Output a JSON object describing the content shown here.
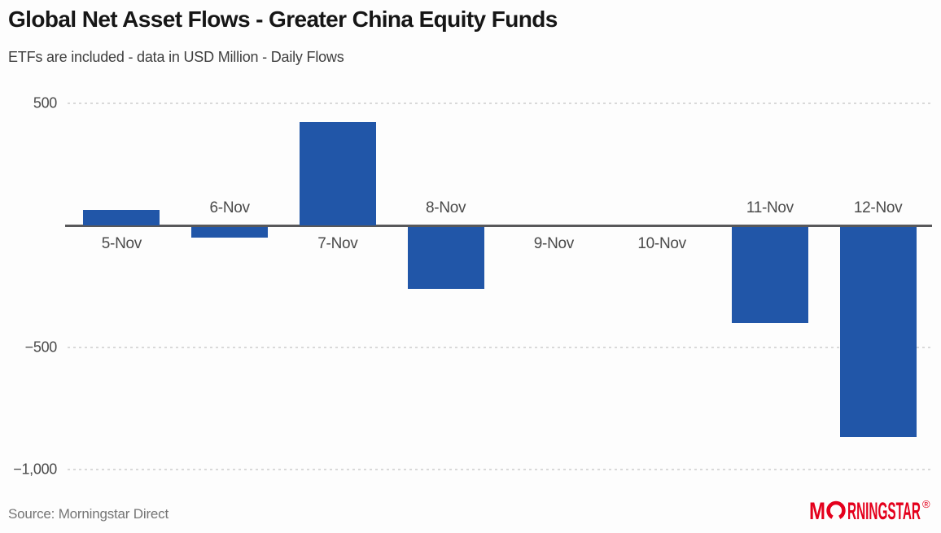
{
  "header": {
    "title": "Global Net Asset Flows - Greater China Equity Funds",
    "subtitle": "ETFs are included - data in USD Million - Daily Flows"
  },
  "chart_data": {
    "type": "bar",
    "categories": [
      "5-Nov",
      "6-Nov",
      "7-Nov",
      "8-Nov",
      "9-Nov",
      "10-Nov",
      "11-Nov",
      "12-Nov"
    ],
    "values": [
      65,
      -45,
      425,
      -255,
      0,
      0,
      -395,
      -860
    ],
    "title": "Global Net Asset Flows - Greater China Equity Funds",
    "subtitle": "ETFs are included - data in USD Million - Daily Flows",
    "xlabel": "",
    "ylabel": "",
    "ylim": [
      -1000,
      500
    ],
    "yticks": [
      {
        "value": 500,
        "label": "500"
      },
      {
        "value": 0,
        "label": ""
      },
      {
        "value": -500,
        "label": "−500"
      },
      {
        "value": -1000,
        "label": "−1,000"
      }
    ],
    "grid": "horizontal-dotted",
    "legend": null,
    "bar_color": "#2156a8",
    "axis_color": "#58585a",
    "grid_color": "#d9d9d9",
    "label_color": "#4a4a4a",
    "label_side_note": "category labels sit below axis for values >= 0 and above axis for negative values"
  },
  "footer": {
    "source": "Source: Morningstar Direct",
    "logo": {
      "text": "MORNINGSTAR",
      "mark": "®",
      "color": "#e4001c"
    }
  }
}
